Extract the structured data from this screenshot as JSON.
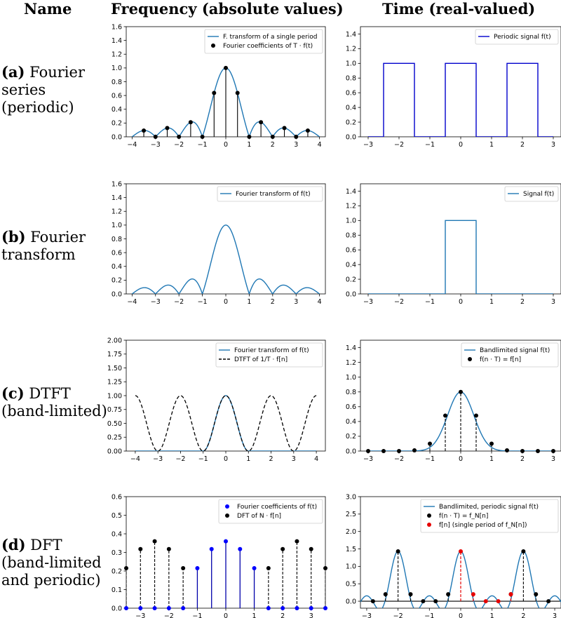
{
  "headers": {
    "name": "Name",
    "freq": "Frequency (absolute values)",
    "time": "Time (real-valued)"
  },
  "rows": [
    {
      "tag": "(a)",
      "lines": [
        "Fourier",
        "series",
        "(periodic)"
      ]
    },
    {
      "tag": "(b)",
      "lines": [
        "Fourier",
        "transform"
      ]
    },
    {
      "tag": "(c)",
      "lines": [
        "DTFT",
        "(band-limited)"
      ]
    },
    {
      "tag": "(d)",
      "lines": [
        "DFT",
        "(band-limited",
        "and periodic)"
      ]
    }
  ],
  "colors": {
    "blue": "#1f77b4",
    "darkblue": "#0000cc",
    "black": "#000000",
    "red": "#e60000",
    "pureblue": "#0000ff"
  },
  "chart_data": [
    {
      "id": "a-freq",
      "type": "line",
      "xlim": [
        -4.25,
        4.25
      ],
      "ylim": [
        0,
        1.6
      ],
      "xticks": [
        -4,
        -3,
        -2,
        -1,
        0,
        1,
        2,
        3,
        4
      ],
      "yticks": [
        "0.0",
        "0.2",
        "0.4",
        "0.6",
        "0.8",
        "1.0",
        "1.2",
        "1.4",
        "1.6"
      ],
      "legend": [
        "F. transform of a single period",
        "Fourier coefficients of T · f(t)"
      ],
      "stems": {
        "x": [
          -3.5,
          -3,
          -2.5,
          -2,
          -1.5,
          -1,
          -0.5,
          0,
          0.5,
          1,
          1.5,
          2,
          2.5,
          3,
          3.5
        ],
        "y": [
          0.091,
          0,
          0.127,
          0,
          0.212,
          0,
          0.637,
          1.0,
          0.637,
          0,
          0.212,
          0,
          0.127,
          0,
          0.091
        ]
      }
    },
    {
      "id": "a-time",
      "type": "line",
      "xlim": [
        -3.25,
        3.25
      ],
      "ylim": [
        0,
        1.5
      ],
      "xticks": [
        -3,
        -2,
        -1,
        0,
        1,
        2,
        3
      ],
      "yticks": [
        "0.0",
        "0.2",
        "0.4",
        "0.6",
        "0.8",
        "1.0",
        "1.2",
        "1.4"
      ],
      "legend": [
        "Periodic signal f(t)"
      ],
      "pulses": [
        [
          -2.5,
          -1.5
        ],
        [
          -0.5,
          0.5
        ],
        [
          1.5,
          2.5
        ]
      ],
      "range": [
        -3,
        3
      ]
    },
    {
      "id": "b-freq",
      "type": "line",
      "xlim": [
        -4.25,
        4.25
      ],
      "ylim": [
        0,
        1.6
      ],
      "xticks": [
        -4,
        -3,
        -2,
        -1,
        0,
        1,
        2,
        3,
        4
      ],
      "yticks": [
        "0.0",
        "0.2",
        "0.4",
        "0.6",
        "0.8",
        "1.0",
        "1.2",
        "1.4",
        "1.6"
      ],
      "legend": [
        "Fourier transform of f(t)"
      ]
    },
    {
      "id": "b-time",
      "type": "line",
      "xlim": [
        -3.25,
        3.25
      ],
      "ylim": [
        0,
        1.5
      ],
      "xticks": [
        -3,
        -2,
        -1,
        0,
        1,
        2,
        3
      ],
      "yticks": [
        "0.0",
        "0.2",
        "0.4",
        "0.6",
        "0.8",
        "1.0",
        "1.2",
        "1.4"
      ],
      "legend": [
        "Signal f(t)"
      ],
      "pulses": [
        [
          -0.5,
          0.5
        ]
      ],
      "range": [
        -3,
        3
      ]
    },
    {
      "id": "c-freq",
      "type": "line",
      "xlim": [
        -4.4,
        4.4
      ],
      "ylim": [
        0,
        2.0
      ],
      "xticks": [
        -4,
        -3,
        -2,
        -1,
        0,
        1,
        2,
        3,
        4
      ],
      "yticks": [
        "0.00",
        "0.25",
        "0.50",
        "0.75",
        "1.00",
        "1.25",
        "1.50",
        "1.75",
        "2.00"
      ],
      "legend": [
        "Fourier transform of f(t)",
        "DTFT of 1/T · f[n]"
      ]
    },
    {
      "id": "c-time",
      "type": "line",
      "xlim": [
        -3.25,
        3.25
      ],
      "ylim": [
        0,
        1.5
      ],
      "xticks": [
        -3,
        -2,
        -1,
        0,
        1,
        2,
        3
      ],
      "yticks": [
        "0.0",
        "0.2",
        "0.4",
        "0.6",
        "0.8",
        "1.0",
        "1.2",
        "1.4"
      ],
      "legend": [
        "Bandlimited signal f(t)",
        "f(n · T) = f[n]"
      ],
      "samples": {
        "x": [
          -3,
          -2.5,
          -2,
          -1.5,
          -1,
          -0.5,
          0,
          0.5,
          1,
          1.5,
          2,
          2.5,
          3
        ],
        "y": [
          0,
          0,
          0,
          0.01,
          0.1,
          0.48,
          0.8,
          0.48,
          0.1,
          0.01,
          0,
          0,
          0
        ]
      }
    },
    {
      "id": "d-freq",
      "type": "scatter",
      "xlim": [
        -3.5,
        3.5
      ],
      "ylim": [
        0,
        0.6
      ],
      "xticks": [
        -3,
        -2,
        -1,
        0,
        1,
        2,
        3
      ],
      "yticks": [
        "0.0",
        "0.1",
        "0.2",
        "0.3",
        "0.4",
        "0.5",
        "0.6"
      ],
      "legend": [
        "Fourier coefficients of f(t)",
        "DFT of N · f[n]"
      ],
      "blue": {
        "x": [
          -1,
          -0.5,
          0,
          0.5,
          1
        ],
        "y": [
          0.215,
          0.318,
          0.36,
          0.318,
          0.215
        ]
      },
      "black": {
        "x": [
          -3.5,
          -3,
          -2.5,
          -2,
          -1.5,
          1.5,
          2,
          2.5,
          3,
          3.5
        ],
        "y": [
          0.215,
          0.318,
          0.36,
          0.318,
          0.215,
          0.215,
          0.318,
          0.36,
          0.318,
          0.215
        ]
      },
      "bluezero": [
        -3.5,
        -3,
        -2.5,
        -2,
        -1.5,
        1.5,
        2,
        2.5,
        3,
        3.5
      ]
    },
    {
      "id": "d-time",
      "type": "line",
      "xlim": [
        -3.2,
        3.2
      ],
      "ylim": [
        -0.2,
        3.0
      ],
      "xticks": [
        -3,
        -2,
        -1,
        0,
        1,
        2,
        3
      ],
      "yticks": [
        "0.0",
        "0.5",
        "1.0",
        "1.5",
        "2.0",
        "2.5",
        "3.0"
      ],
      "legend": [
        "Bandlimited, periodic signal f(t)",
        "f(n · T) = f_N[n]",
        "f[n] (single period of f_N[n])"
      ],
      "black": {
        "x": [
          -2.8,
          -2.4,
          -2,
          -1.6,
          -1.2,
          -0.8,
          -0.4,
          2.4,
          2.8
        ],
        "y": [
          0,
          0.2,
          1.43,
          0.2,
          0,
          0,
          0.2,
          0.2,
          0
        ]
      },
      "black2": {
        "x": [
          1.6,
          2
        ],
        "y": [
          0.2,
          1.43
        ]
      },
      "red": {
        "x": [
          0,
          0.4,
          0.8,
          1.2,
          1.6
        ],
        "y": [
          1.43,
          0.2,
          0,
          0,
          0.2
        ]
      }
    }
  ]
}
